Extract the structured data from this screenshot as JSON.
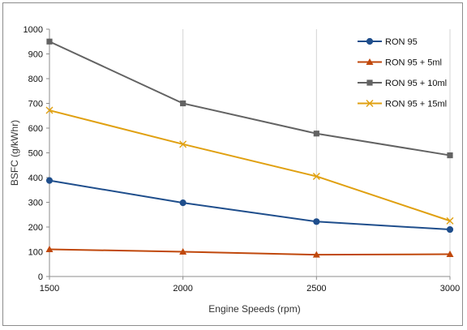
{
  "chart_data": {
    "type": "line",
    "title": "",
    "xlabel": "Engine Speeds (rpm)",
    "ylabel": "BSFC (g/kWhr)",
    "x": [
      1500,
      2000,
      2500,
      3000
    ],
    "x_ticks": [
      "1500",
      "2000",
      "2500",
      "3000"
    ],
    "y_ticks": [
      "0",
      "100",
      "200",
      "300",
      "400",
      "500",
      "600",
      "700",
      "800",
      "900",
      "1000"
    ],
    "ylim": [
      0,
      1000
    ],
    "xlim": [
      1500,
      3000
    ],
    "grid": "vertical",
    "legend_position": "top-right",
    "series": [
      {
        "name": "RON 95",
        "values": [
          388,
          298,
          222,
          190
        ],
        "color": "#1f4e8c",
        "marker": "circle"
      },
      {
        "name": "RON 95 + 5ml",
        "values": [
          110,
          100,
          88,
          90
        ],
        "color": "#c0480c",
        "marker": "triangle"
      },
      {
        "name": "RON 95 + 10ml",
        "values": [
          950,
          700,
          578,
          490
        ],
        "color": "#636363",
        "marker": "square"
      },
      {
        "name": "RON 95 + 15ml",
        "values": [
          672,
          535,
          405,
          225
        ],
        "color": "#e0a010",
        "marker": "x"
      }
    ]
  }
}
